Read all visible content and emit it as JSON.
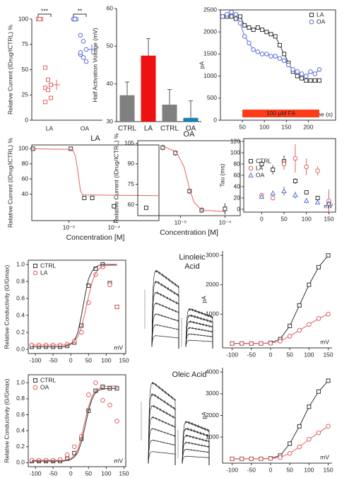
{
  "chart_data": [
    {
      "type": "strip",
      "ylabel": "Relative Current (IDrug/ICTRL) %",
      "ylim": [
        0,
        100
      ],
      "yticks": [
        0,
        25,
        50,
        75,
        100
      ],
      "groups": [
        {
          "name": "LA",
          "color": "#e06060",
          "marker": "square",
          "control": [
            100,
            100,
            100,
            100,
            100
          ],
          "values": [
            52,
            40,
            35,
            32,
            30,
            22,
            18
          ],
          "mean": 35,
          "error": 5
        },
        {
          "name": "OA",
          "color": "#5b6fd6",
          "marker": "circle",
          "control": [
            100,
            100,
            100,
            100,
            100
          ],
          "values": [
            84,
            78,
            70,
            65,
            62,
            58,
            67
          ],
          "mean": 70,
          "error": 5
        }
      ],
      "significance": [
        "***",
        "**"
      ]
    },
    {
      "type": "bar",
      "ylabel": "Half Activation Voltage (mV)",
      "categories": [
        "CTRL",
        "LA",
        "CTRL",
        "OA"
      ],
      "values": [
        37,
        47.5,
        34.5,
        31
      ],
      "errors": [
        3.5,
        4.5,
        4,
        4.5
      ],
      "colors": [
        "#808080",
        "#ee1111",
        "#808080",
        "#1a7fb5"
      ],
      "ylim": [
        30,
        60
      ],
      "yticks": [
        30,
        40,
        50,
        60
      ]
    },
    {
      "type": "line",
      "ylabel": "pA",
      "xlabel": "Time (s)",
      "xlim": [
        0,
        262
      ],
      "ylim": [
        0,
        2500
      ],
      "xticks": [
        50,
        100,
        150,
        200
      ],
      "yticks": [
        0,
        500,
        1000,
        1500,
        2000,
        2500
      ],
      "legend": "upper right",
      "stimulus": {
        "label": "100 µM FA",
        "start": 50,
        "end": 225
      },
      "series": [
        {
          "name": "LA",
          "color": "#333333",
          "marker": "square",
          "x": [
            5,
            15,
            25,
            35,
            45,
            55,
            65,
            75,
            85,
            95,
            105,
            115,
            125,
            135,
            145,
            155,
            165,
            175,
            185,
            195,
            205,
            215,
            225
          ],
          "values": [
            2350,
            2350,
            2350,
            2300,
            2350,
            2150,
            2100,
            2050,
            2100,
            2050,
            2000,
            1950,
            1900,
            1700,
            1500,
            1300,
            1100,
            1000,
            950,
            900,
            900,
            900,
            900
          ]
        },
        {
          "name": "OA",
          "color": "#5b6fd6",
          "marker": "circle",
          "x": [
            5,
            15,
            25,
            35,
            45,
            55,
            65,
            75,
            85,
            95,
            105,
            115,
            125,
            135,
            145,
            155,
            165,
            175,
            185,
            195,
            205,
            215,
            225
          ],
          "values": [
            2350,
            2400,
            2450,
            2400,
            2200,
            1900,
            1750,
            1600,
            1550,
            1500,
            1500,
            1450,
            1450,
            1400,
            1350,
            1250,
            1150,
            1100,
            1050,
            1000,
            1100,
            1050,
            1150
          ]
        }
      ]
    },
    {
      "type": "scatter",
      "title": "LA",
      "ylabel": "Relative Current (IDrug/ICTRL) %",
      "xlabel": "Concentration [M]",
      "xscale": "log",
      "xlim": [
        1.5e-06,
        0.001
      ],
      "ylim": [
        5,
        105
      ],
      "xticks": [
        {
          "value": 1e-05,
          "label": "10⁻⁵"
        },
        {
          "value": 0.0001,
          "label": "10⁻⁴"
        }
      ],
      "yticks": [
        40,
        60,
        80,
        100
      ],
      "series": [
        {
          "color": "#333333",
          "marker": "square",
          "x": [
            1.6e-06,
            1.1e-05,
            2.2e-05,
            3.3e-05,
            0.0001,
            0.00052
          ],
          "values": [
            100,
            100,
            35,
            35,
            24,
            22
          ],
          "errors": [
            1,
            2,
            1,
            1,
            3,
            2
          ]
        },
        {
          "color": "#e86060",
          "marker": "none",
          "line": true,
          "x": [
            1.5e-06,
            1.2e-05,
            1.4e-05,
            1.6e-05,
            1.8e-05,
            2e-05,
            0.001
          ],
          "values": [
            100,
            99,
            90,
            68,
            45,
            39,
            38
          ]
        }
      ]
    },
    {
      "type": "scatter",
      "title": "OA",
      "ylabel": "Relative Current (IDrug/ICTRL) %",
      "xlabel": "Concentration [M]",
      "xscale": "log",
      "xlim": [
        1.1e-06,
        0.00022
      ],
      "ylim": [
        52,
        107
      ],
      "xticks": [
        {
          "value": 1e-05,
          "label": "10⁻⁵"
        },
        {
          "value": 0.0001,
          "label": "10⁻⁴"
        }
      ],
      "yticks": [
        60,
        75,
        90,
        105
      ],
      "series": [
        {
          "color": "#333333",
          "marker": "square",
          "x": [
            4e-06,
            7.7e-06,
            1.6e-05,
            3e-05,
            0.0001
          ],
          "values": [
            102,
            98,
            70,
            56,
            57
          ],
          "errors": [
            2,
            2,
            2,
            2,
            4
          ]
        },
        {
          "color": "#e86060",
          "marker": "none",
          "line": true,
          "x": [
            4e-06,
            8e-06,
            1.2e-05,
            1.6e-05,
            2e-05,
            3e-05,
            0.0001
          ],
          "values": [
            103,
            99,
            88,
            72,
            62,
            56,
            55
          ]
        }
      ]
    },
    {
      "type": "scatter",
      "ylabel": "Tau (ms)",
      "xlabel": "mV",
      "xlim": [
        -40,
        165
      ],
      "ylim": [
        -5,
        125
      ],
      "xticks": [
        0,
        50,
        100,
        150
      ],
      "yticks": [
        0,
        20,
        40,
        60,
        80,
        100,
        120
      ],
      "legend": "upper left",
      "series": [
        {
          "name": "CTRL",
          "color": "#333333",
          "marker": "square",
          "x": [
            0,
            25,
            50,
            75,
            100,
            125,
            150
          ],
          "values": [
            80,
            70,
            85,
            50,
            30,
            20,
            12
          ],
          "errors": [
            5,
            8,
            10,
            5,
            3,
            2,
            2
          ]
        },
        {
          "name": "LA",
          "color": "#e06060",
          "marker": "circle",
          "x": [
            0,
            25,
            50,
            75,
            100,
            125,
            150
          ],
          "values": [
            25,
            20,
            80,
            90,
            75,
            68,
            15
          ],
          "errors": [
            3,
            3,
            10,
            25,
            15,
            8,
            20
          ]
        },
        {
          "name": "OA",
          "color": "#5b6fd6",
          "marker": "triangle",
          "x": [
            0,
            25,
            50,
            75,
            100,
            125,
            150
          ],
          "values": [
            22,
            28,
            32,
            25,
            15,
            12,
            10
          ],
          "errors": [
            3,
            5,
            8,
            6,
            4,
            3,
            5
          ]
        }
      ]
    },
    {
      "type": "scatter",
      "ylabel": "Relative Conductivity (G/Gmax)",
      "xlabel": "mV",
      "xlim": [
        -120,
        155
      ],
      "ylim": [
        -0.05,
        1.05
      ],
      "xticks": [
        -100,
        -50,
        0,
        50,
        100,
        150
      ],
      "yticks": [
        {
          "value": 0,
          "label": "0.0"
        },
        {
          "value": 0.2,
          "label": "0.2"
        },
        {
          "value": 0.4,
          "label": "0.4"
        },
        {
          "value": 0.6,
          "label": "0.6"
        },
        {
          "value": 0.8,
          "label": "0.8"
        },
        {
          "value": 1,
          "label": "1.0"
        }
      ],
      "legend": "upper left",
      "series": [
        {
          "name": "CTRL",
          "color": "#333333",
          "marker": "square",
          "x": [
            -110,
            -90,
            -70,
            -50,
            -30,
            -10,
            10,
            30,
            50,
            70,
            90,
            110,
            130
          ],
          "values": [
            0.03,
            0.03,
            0.03,
            0.03,
            0.03,
            0.04,
            0.08,
            0.28,
            0.75,
            0.95,
            1.0,
            0.78,
            0.5
          ]
        },
        {
          "name": "LA",
          "color": "#e06060",
          "marker": "circle",
          "x": [
            -110,
            -90,
            -70,
            -50,
            -30,
            -10,
            10,
            30,
            50,
            70,
            90,
            110,
            130
          ],
          "values": [
            0.05,
            0.05,
            0.05,
            0.05,
            0.05,
            0.06,
            0.1,
            0.2,
            0.55,
            0.88,
            0.97,
            0.76,
            0.5
          ]
        },
        {
          "color": "#333333",
          "marker": "none",
          "line": true,
          "x": [
            -110,
            -50,
            -20,
            0,
            10,
            20,
            30,
            40,
            50,
            60,
            70,
            80,
            90,
            110,
            130
          ],
          "values": [
            0.03,
            0.03,
            0.03,
            0.06,
            0.1,
            0.2,
            0.4,
            0.63,
            0.83,
            0.92,
            0.97,
            0.99,
            1.0,
            1.0,
            1.0
          ]
        },
        {
          "color": "#e06060",
          "marker": "none",
          "line": true,
          "x": [
            -110,
            -50,
            -20,
            0,
            10,
            20,
            30,
            40,
            50,
            60,
            70,
            80,
            90,
            110,
            130
          ],
          "values": [
            0.05,
            0.05,
            0.05,
            0.07,
            0.1,
            0.15,
            0.26,
            0.43,
            0.62,
            0.79,
            0.9,
            0.95,
            0.98,
            0.99,
            0.99
          ]
        }
      ]
    },
    {
      "type": "line",
      "ylabel": "pA",
      "xlabel": "mV",
      "xlim": [
        -125,
        160
      ],
      "ylim": [
        -150,
        3150
      ],
      "xticks": [
        -100,
        -50,
        0,
        50,
        100,
        150
      ],
      "yticks": [
        1000,
        2000,
        3000
      ],
      "series": [
        {
          "color": "#333333",
          "marker": "square",
          "x": [
            -100,
            -75,
            -50,
            -25,
            0,
            25,
            50,
            75,
            100,
            125,
            150
          ],
          "values": [
            0,
            0,
            0,
            0,
            20,
            150,
            600,
            1300,
            2000,
            2600,
            3000
          ]
        },
        {
          "color": "#e06060",
          "marker": "circle",
          "x": [
            -100,
            -75,
            -50,
            -25,
            0,
            25,
            50,
            75,
            100,
            125,
            150
          ],
          "values": [
            0,
            0,
            0,
            0,
            10,
            80,
            250,
            450,
            650,
            850,
            1000
          ]
        }
      ]
    },
    {
      "type": "scatter",
      "ylabel": "Relative Conductivity (G/Gmax)",
      "xlabel": "mV",
      "xlim": [
        -120,
        155
      ],
      "ylim": [
        -0.05,
        1.1
      ],
      "xticks": [
        -100,
        -50,
        0,
        50,
        100,
        150
      ],
      "yticks": [
        {
          "value": 0,
          "label": "0.0"
        },
        {
          "value": 0.2,
          "label": "0.2"
        },
        {
          "value": 0.4,
          "label": "0.4"
        },
        {
          "value": 0.6,
          "label": "0.6"
        },
        {
          "value": 0.8,
          "label": "0.8"
        },
        {
          "value": 1,
          "label": "1.0"
        }
      ],
      "legend": "upper left",
      "series": [
        {
          "name": "CTRL",
          "color": "#333333",
          "marker": "square",
          "x": [
            -110,
            -90,
            -70,
            -50,
            -30,
            -10,
            10,
            30,
            50,
            70,
            90,
            110,
            130
          ],
          "values": [
            0.02,
            0.02,
            0.02,
            0.02,
            0.02,
            0.05,
            0.12,
            0.3,
            0.65,
            0.9,
            0.95,
            0.93,
            0.93
          ]
        },
        {
          "name": "OA",
          "color": "#e06060",
          "marker": "circle",
          "x": [
            -110,
            -90,
            -70,
            -50,
            -30,
            -10,
            10,
            30,
            50,
            70,
            90,
            110,
            130
          ],
          "values": [
            0.03,
            0.03,
            0.03,
            0.03,
            0.04,
            0.1,
            0.2,
            0.33,
            0.85,
            1.0,
            0.78,
            0.72,
            0.52
          ]
        },
        {
          "color": "#333333",
          "marker": "none",
          "line": true,
          "x": [
            -110,
            -50,
            -20,
            0,
            10,
            20,
            30,
            40,
            50,
            60,
            70,
            80,
            90,
            110,
            130
          ],
          "values": [
            0.02,
            0.02,
            0.02,
            0.04,
            0.07,
            0.13,
            0.26,
            0.45,
            0.65,
            0.8,
            0.88,
            0.91,
            0.92,
            0.93,
            0.93
          ]
        },
        {
          "color": "#e06060",
          "marker": "none",
          "line": true,
          "x": [
            -110,
            -50,
            -20,
            0,
            10,
            20,
            30,
            40,
            50,
            60,
            70,
            80,
            90,
            110,
            130
          ],
          "values": [
            0.03,
            0.03,
            0.03,
            0.05,
            0.09,
            0.17,
            0.32,
            0.52,
            0.7,
            0.83,
            0.9,
            0.93,
            0.95,
            0.96,
            0.96
          ]
        }
      ]
    },
    {
      "type": "line",
      "ylabel": "pA",
      "xlabel": "mV",
      "xlim": [
        -125,
        160
      ],
      "ylim": [
        -200,
        4200
      ],
      "xticks": [
        -100,
        -50,
        0,
        50,
        100,
        150
      ],
      "yticks": [
        1000,
        2000,
        3000,
        4000
      ],
      "series": [
        {
          "color": "#333333",
          "marker": "square",
          "x": [
            -100,
            -75,
            -50,
            -25,
            0,
            25,
            50,
            75,
            100,
            125,
            150
          ],
          "values": [
            0,
            0,
            0,
            0,
            20,
            150,
            700,
            1500,
            2400,
            3100,
            3600
          ]
        },
        {
          "color": "#e06060",
          "marker": "circle",
          "x": [
            -100,
            -75,
            -50,
            -25,
            0,
            25,
            50,
            75,
            100,
            125,
            150
          ],
          "values": [
            0,
            0,
            0,
            0,
            10,
            60,
            250,
            550,
            900,
            1200,
            1500
          ]
        }
      ]
    }
  ],
  "trace_panels": [
    {
      "label": "Linoleic Acid"
    },
    {
      "label": "Oleic Acid"
    }
  ]
}
